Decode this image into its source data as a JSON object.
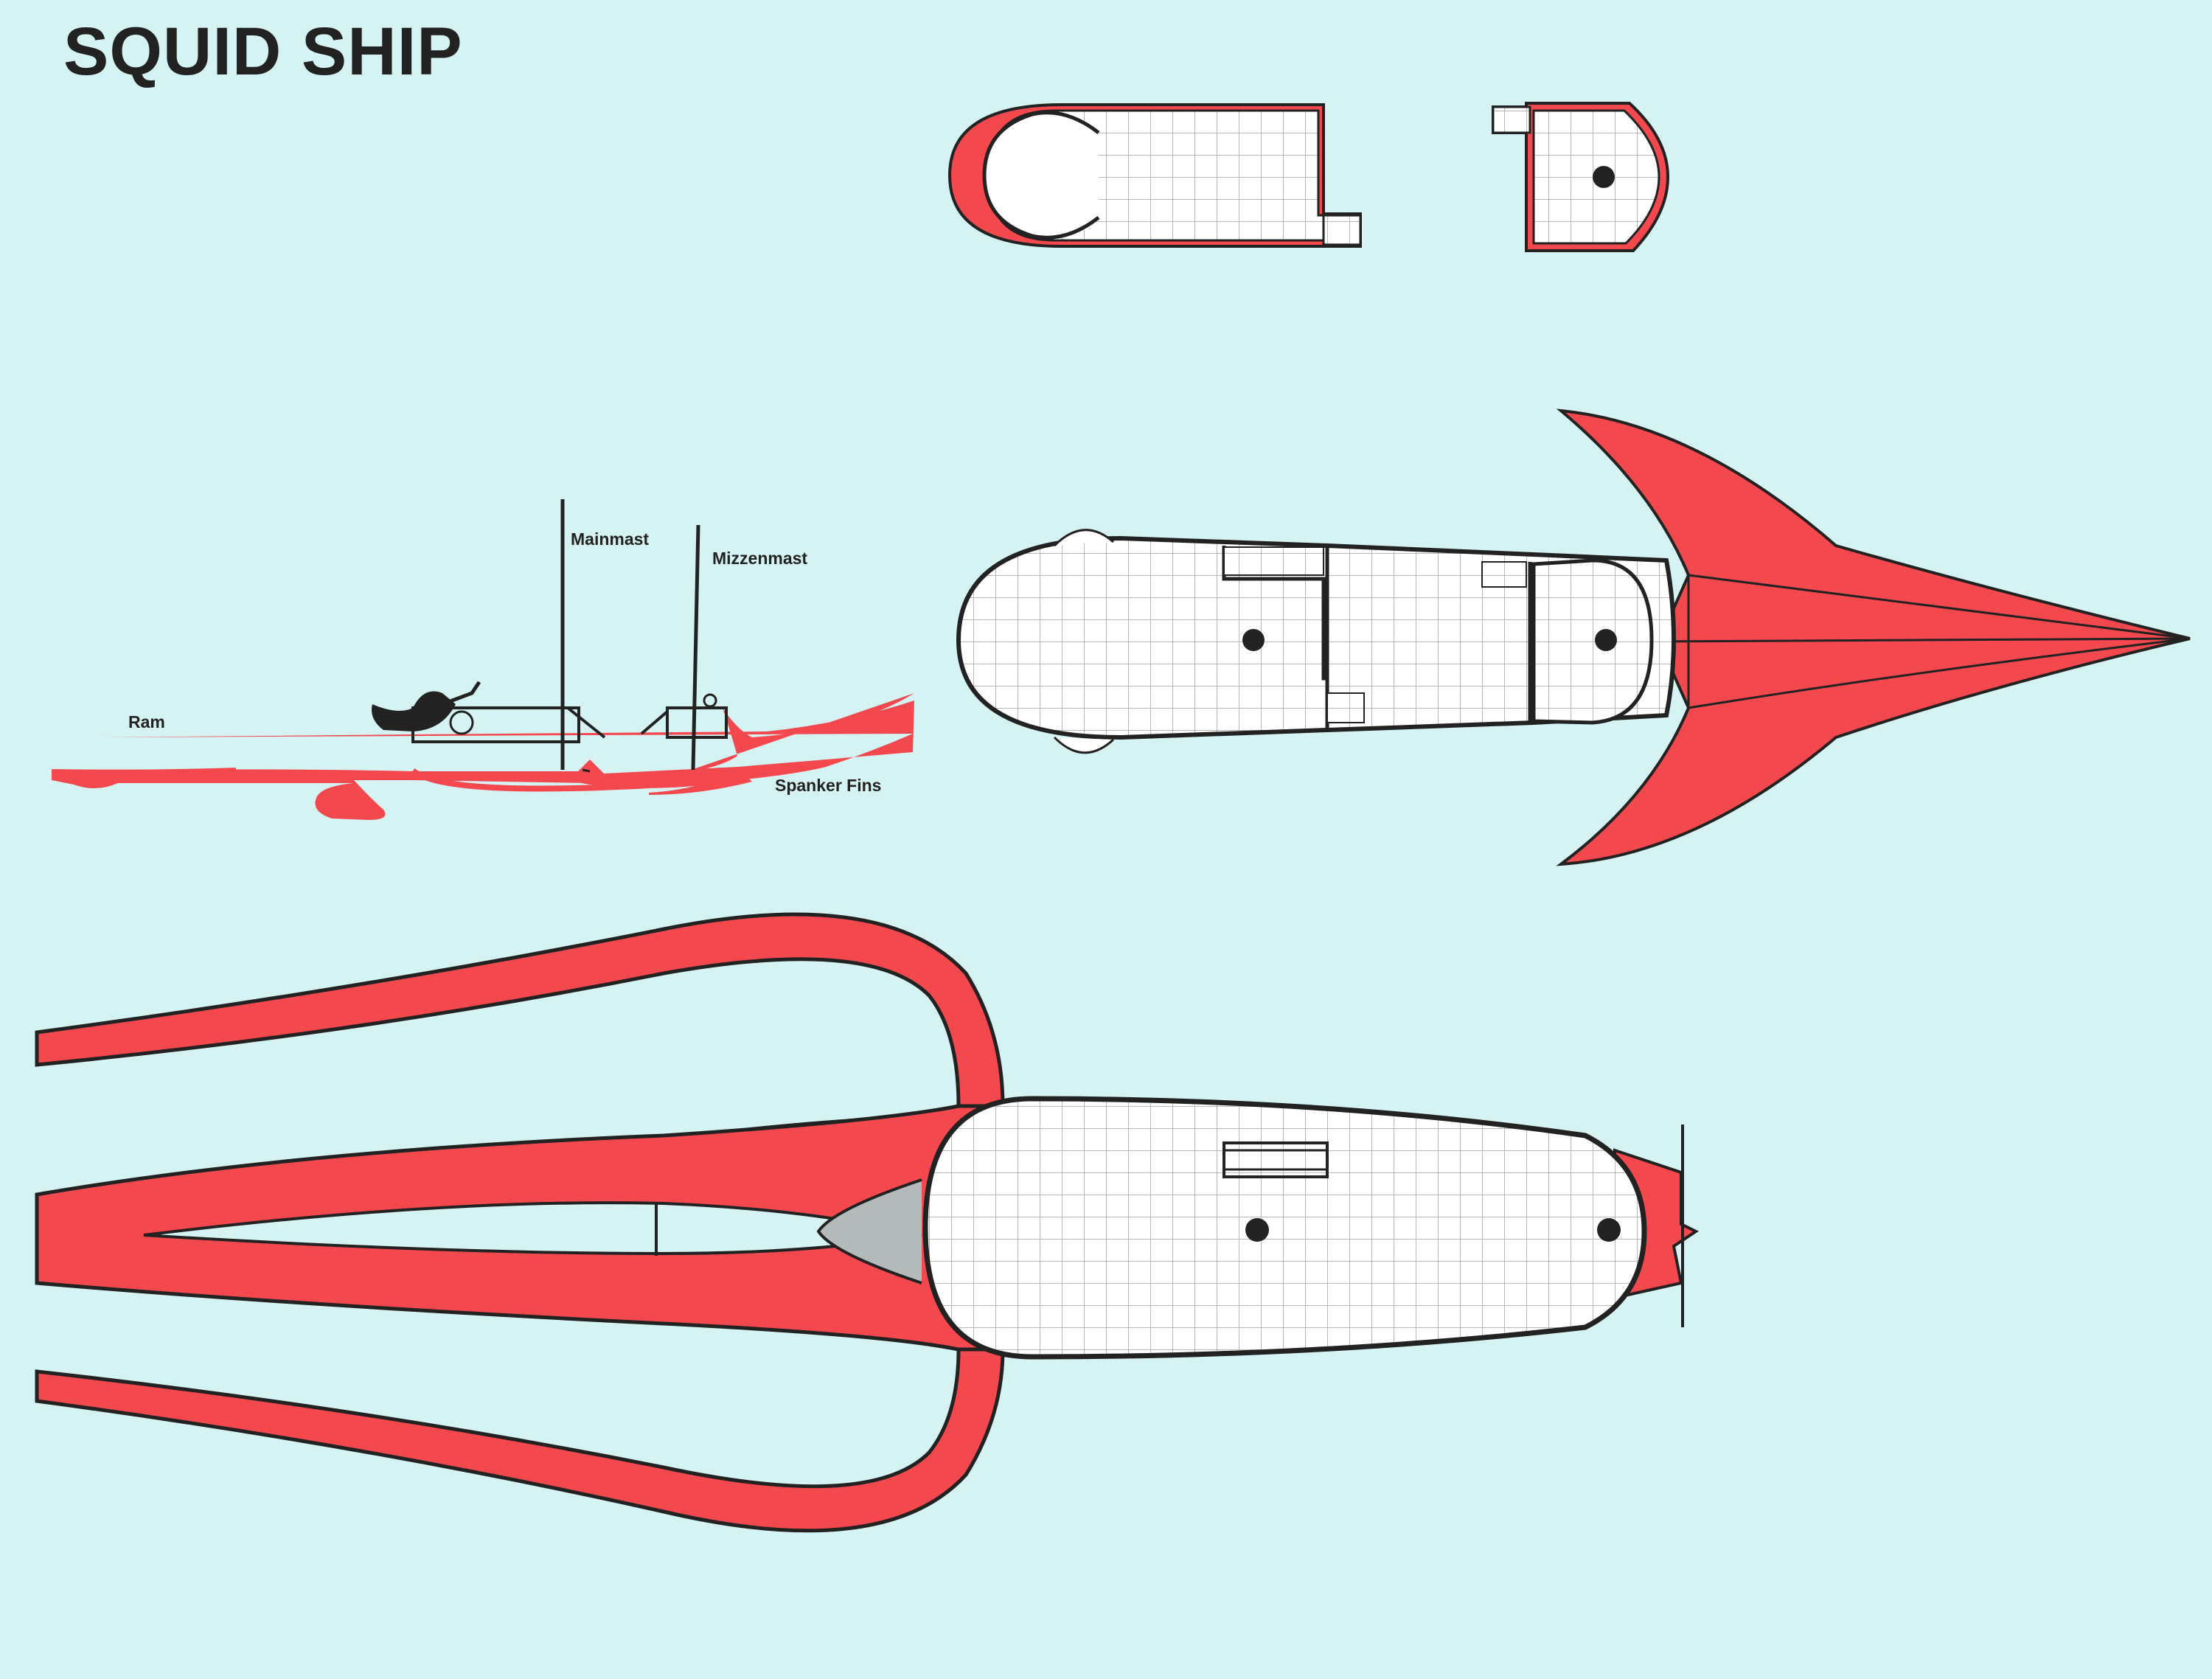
{
  "title": "SQUID SHIP",
  "labels": {
    "mainmast": "Mainmast",
    "mizzenmast": "Mizzenmast",
    "ram": "Ram",
    "spanker_fins": "Spanker Fins"
  },
  "colors": {
    "background": "#d6f3f4",
    "hull_red": "#f4484f",
    "outline": "#222222",
    "deck": "#ffffff",
    "grid": "#b8b8b8",
    "fin_gray": "#b4b9b9"
  }
}
